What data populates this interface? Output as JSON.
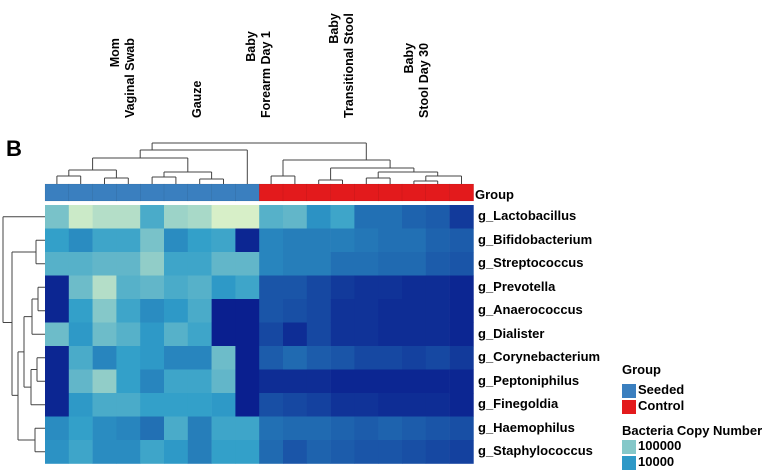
{
  "panel_label": "B",
  "legend_group": {
    "title": "Group",
    "items": [
      {
        "label": "Seeded",
        "color": "#3a7fbf"
      },
      {
        "label": "Control",
        "color": "#e31a1c"
      }
    ]
  },
  "legend_scale": {
    "title": "Bacteria Copy Number",
    "ticks": [
      "100000",
      "10000"
    ]
  },
  "chart_data": {
    "type": "heatmap",
    "title": "",
    "column_annotation_label": "Group",
    "column_groups": [
      {
        "label": "Mom\nVaginal Swab"
      },
      {
        "label": "Gauze"
      },
      {
        "label": "Baby\nForearm Day 1"
      },
      {
        "label": "Baby\nTransitional Stool"
      },
      {
        "label": "Baby\nStool Day 30"
      }
    ],
    "column_group_of_sample": [
      "Seeded",
      "Seeded",
      "Seeded",
      "Seeded",
      "Seeded",
      "Seeded",
      "Seeded",
      "Seeded",
      "Seeded",
      "Control",
      "Control",
      "Control",
      "Control",
      "Control",
      "Control",
      "Control",
      "Control",
      "Control"
    ],
    "rows": [
      "g_Lactobacillus",
      "g_Bifidobacterium",
      "g_Streptococcus",
      "g_Prevotella",
      "g_Anaerococcus",
      "g_Dialister",
      "g_Corynebacterium",
      "g_Peptoniphilus",
      "g_Finegoldia",
      "g_Haemophilus",
      "g_Staphylococcus"
    ],
    "values_log10": [
      [
        4.9,
        5.6,
        5.4,
        5.4,
        4.5,
        5.2,
        5.3,
        5.7,
        5.7,
        4.6,
        4.7,
        4.1,
        4.4,
        3.6,
        3.6,
        3.4,
        3.3,
        2.8
      ],
      [
        4.3,
        4.0,
        4.4,
        4.4,
        4.9,
        4.0,
        4.3,
        4.4,
        2.5,
        3.9,
        3.8,
        3.8,
        3.8,
        3.7,
        3.6,
        3.6,
        3.4,
        3.3
      ],
      [
        4.6,
        4.6,
        4.7,
        4.7,
        5.1,
        4.4,
        4.4,
        4.7,
        4.7,
        3.9,
        3.8,
        3.8,
        3.6,
        3.6,
        3.5,
        3.5,
        3.3,
        3.2
      ],
      [
        2.5,
        4.8,
        5.4,
        4.6,
        4.7,
        4.5,
        4.6,
        4.2,
        4.4,
        3.2,
        3.2,
        3.0,
        2.8,
        2.7,
        2.7,
        2.6,
        2.6,
        2.5
      ],
      [
        2.5,
        4.3,
        5.0,
        4.4,
        4.0,
        4.2,
        4.5,
        2.4,
        2.4,
        3.2,
        3.1,
        3.0,
        2.7,
        2.7,
        2.6,
        2.6,
        2.6,
        2.5
      ],
      [
        4.8,
        4.2,
        4.8,
        4.6,
        4.2,
        4.6,
        4.4,
        2.4,
        2.4,
        3.0,
        2.6,
        3.0,
        2.7,
        2.7,
        2.6,
        2.6,
        2.6,
        2.5
      ],
      [
        2.5,
        4.5,
        3.9,
        4.3,
        4.2,
        3.9,
        3.9,
        4.8,
        2.4,
        3.3,
        3.5,
        3.3,
        3.2,
        3.0,
        3.0,
        2.9,
        3.0,
        2.8
      ],
      [
        2.5,
        4.7,
        5.1,
        4.3,
        3.9,
        4.4,
        4.4,
        4.7,
        2.4,
        2.6,
        2.6,
        2.6,
        2.5,
        2.5,
        2.5,
        2.5,
        2.5,
        2.5
      ],
      [
        2.5,
        4.2,
        4.5,
        4.5,
        4.3,
        4.3,
        4.3,
        4.2,
        2.4,
        3.1,
        3.0,
        2.9,
        2.7,
        2.7,
        2.6,
        2.6,
        2.6,
        2.5
      ],
      [
        4.0,
        4.3,
        4.0,
        3.9,
        3.6,
        4.5,
        3.8,
        4.4,
        4.4,
        3.6,
        3.5,
        3.5,
        3.4,
        3.3,
        3.4,
        3.3,
        3.2,
        3.1
      ],
      [
        4.1,
        4.4,
        4.0,
        4.0,
        4.4,
        4.2,
        3.8,
        4.3,
        4.3,
        3.5,
        3.2,
        3.4,
        3.3,
        3.2,
        3.2,
        3.1,
        3.0,
        2.9
      ]
    ],
    "color_scale": {
      "low": "#0a1f8f",
      "mid": "#2f9ec9",
      "high": "#e3f5c8",
      "range_log10": [
        2.4,
        5.8
      ]
    },
    "group_colors": {
      "Seeded": "#3a7fbf",
      "Control": "#e31a1c"
    },
    "legend_placement": "right"
  }
}
